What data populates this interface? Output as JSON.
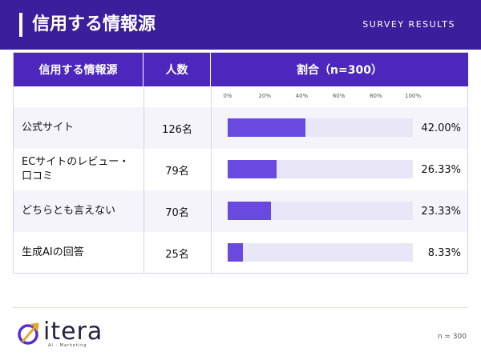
{
  "header": {
    "title": "信用する情報源",
    "survey_label": "SURVEY RESULTS"
  },
  "table": {
    "col_source": "信用する情報源",
    "col_count": "人数",
    "col_ratio": "割合（n=300）"
  },
  "chart_data": {
    "type": "bar",
    "orientation": "horizontal",
    "categories": [
      "公式サイト",
      "ECサイトのレビュー・口コミ",
      "どちらとも言えない",
      "生成AIの回答"
    ],
    "counts": [
      "126名",
      "79名",
      "70名",
      "25名"
    ],
    "values": [
      42.0,
      26.33,
      23.33,
      8.33
    ],
    "value_labels": [
      "42.00%",
      "26.33%",
      "23.33%",
      "8.33%"
    ],
    "xlim": [
      0,
      100
    ],
    "tick_labels": [
      "0%",
      "20%",
      "40%",
      "60%",
      "80%",
      "100%"
    ],
    "ticks": [
      0,
      20,
      40,
      60,
      80,
      100
    ]
  },
  "rows": [
    {
      "label": "公式サイト",
      "count": "126名",
      "pct": "42.00%"
    },
    {
      "label": "ECサイトのレビュー・口コミ",
      "count": "79名",
      "pct": "26.33%"
    },
    {
      "label": "どちらとも言えない",
      "count": "70名",
      "pct": "23.33%"
    },
    {
      "label": "生成AIの回答",
      "count": "25名",
      "pct": "8.33%"
    }
  ],
  "footer": {
    "logo_text": "itera",
    "logo_tag": "AI · Marketing",
    "note": "n = 300"
  },
  "colors": {
    "brand": "#3b1e9c",
    "header_cell": "#4c26bd",
    "bar": "#6a49e0",
    "track": "#e9e6f7"
  }
}
